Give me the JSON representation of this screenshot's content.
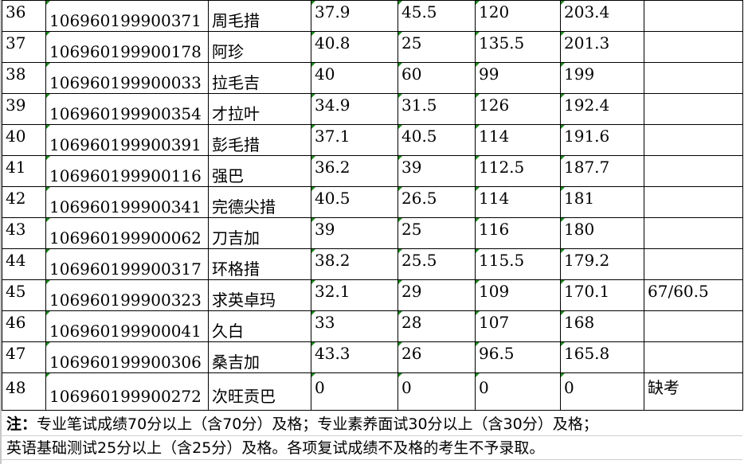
{
  "table": {
    "rows": [
      {
        "no": "36",
        "id": "106960199900371",
        "name": "周毛措",
        "written": "37.9",
        "interview": "45.5",
        "english": "120",
        "total": "203.4",
        "remark": ""
      },
      {
        "no": "37",
        "id": "106960199900178",
        "name": "阿珍",
        "written": "40.8",
        "interview": "25",
        "english": "135.5",
        "total": "201.3",
        "remark": ""
      },
      {
        "no": "38",
        "id": "106960199900033",
        "name": "拉毛吉",
        "written": "40",
        "interview": "60",
        "english": "99",
        "total": "199",
        "remark": ""
      },
      {
        "no": "39",
        "id": "106960199900354",
        "name": "才拉叶",
        "written": "34.9",
        "interview": "31.5",
        "english": "126",
        "total": "192.4",
        "remark": ""
      },
      {
        "no": "40",
        "id": "106960199900391",
        "name": "彭毛措",
        "written": "37.1",
        "interview": "40.5",
        "english": "114",
        "total": "191.6",
        "remark": ""
      },
      {
        "no": "41",
        "id": "106960199900116",
        "name": "强巴",
        "written": "36.2",
        "interview": "39",
        "english": "112.5",
        "total": "187.7",
        "remark": ""
      },
      {
        "no": "42",
        "id": "106960199900341",
        "name": "完德尖措",
        "written": "40.5",
        "interview": "26.5",
        "english": "114",
        "total": "181",
        "remark": ""
      },
      {
        "no": "43",
        "id": "106960199900062",
        "name": "刀吉加",
        "written": "39",
        "interview": "25",
        "english": "116",
        "total": "180",
        "remark": ""
      },
      {
        "no": "44",
        "id": "106960199900317",
        "name": "环格措",
        "written": "38.2",
        "interview": "25.5",
        "english": "115.5",
        "total": "179.2",
        "remark": ""
      },
      {
        "no": "45",
        "id": "106960199900323",
        "name": "求英卓玛",
        "written": "32.1",
        "interview": "29",
        "english": "109",
        "total": "170.1",
        "remark": "67/60.5"
      },
      {
        "no": "46",
        "id": "106960199900041",
        "name": "久白",
        "written": "33",
        "interview": "28",
        "english": "107",
        "total": "168",
        "remark": ""
      },
      {
        "no": "47",
        "id": "106960199900306",
        "name": "桑吉加",
        "written": "43.3",
        "interview": "26",
        "english": "96.5",
        "total": "165.8",
        "remark": ""
      },
      {
        "no": "48",
        "id": "106960199900272",
        "name": "次旺贡巴",
        "written": "0",
        "interview": "0",
        "english": "0",
        "total": "0",
        "remark": "缺考"
      }
    ]
  },
  "note": {
    "label": "注：",
    "line1": "专业笔试成绩70分以上（含70分）及格；专业素养面试30分以上（含30分）及格；",
    "line2": "英语基础测试25分以上（含25分）及格。各项复试成绩不及格的考生不予录取。"
  },
  "colors": {
    "error_indicator": "#1a8a1a"
  }
}
